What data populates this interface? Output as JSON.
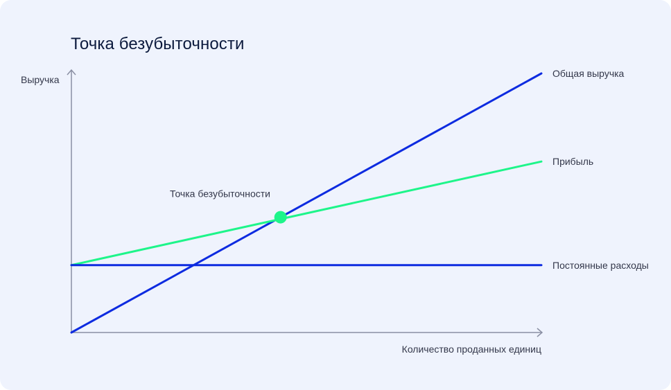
{
  "page": {
    "background": "#eff3fd"
  },
  "chart_data": {
    "type": "line",
    "title": "Точка безубыточности",
    "xlabel": "Количество проданных единиц",
    "ylabel": "Выручка",
    "xlim": [
      0,
      100
    ],
    "ylim": [
      0,
      100
    ],
    "grid": false,
    "series": [
      {
        "name": "Общая выручка",
        "x": [
          0,
          100
        ],
        "y": [
          0,
          100
        ],
        "color": "#0d2be0"
      },
      {
        "name": "Прибыль",
        "x": [
          0,
          100
        ],
        "y": [
          26,
          66
        ],
        "color": "#1ef58a"
      },
      {
        "name": "Постоянные расходы",
        "x": [
          0,
          100
        ],
        "y": [
          26,
          26
        ],
        "color": "#0d2be0"
      }
    ],
    "annotations": [
      {
        "text": "Точка безубыточности",
        "x": 44.5,
        "y": 44.5,
        "marker_color": "#1ef58a"
      }
    ],
    "colors": {
      "axis": "#8a8fa3",
      "text": "#33374a",
      "title": "#0c1a3d"
    }
  }
}
